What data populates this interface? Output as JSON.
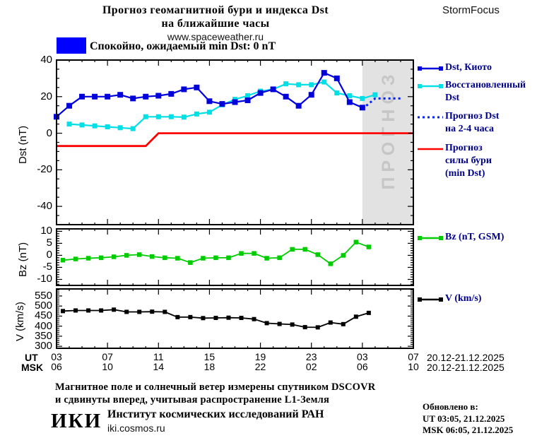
{
  "header": {
    "title_line1": "Прогноз геомагнитной бури и индекса Dst",
    "title_line2": "на ближайшие часы",
    "website": "www.spaceweather.ru",
    "brand": "StormFocus"
  },
  "status_banner": {
    "level_color": "#0000ff",
    "text": "Спокойно, ожидаемый min Dst: 0 nT"
  },
  "forecast_region_label": "ПРОГНОЗ",
  "legend": {
    "dst_kyoto": "Dst, Киото",
    "dst_restored_line1": "Восстановленный",
    "dst_restored_line2": "Dst",
    "dst_forecast_line1": "Прогноз Dst",
    "dst_forecast_line2": "на 2-4 часа",
    "storm_forecast_line1": "Прогноз",
    "storm_forecast_line2": "силы бури",
    "storm_forecast_line3": "(min Dst)",
    "bz": "Bz (nT, GSM)",
    "v": "V (km/s)"
  },
  "axes": {
    "dst_ylabel": "Dst (nT)",
    "bz_ylabel": "Bz (nT)",
    "v_ylabel": "V (km/s)",
    "ut_row_label": "UT",
    "msk_row_label": "MSK",
    "ut_tick_labels": [
      "03",
      "07",
      "11",
      "15",
      "19",
      "23",
      "03",
      "07"
    ],
    "msk_tick_labels": [
      "06",
      "10",
      "14",
      "18",
      "22",
      "02",
      "06",
      "10"
    ],
    "ut_date_range": "20.12-21.12.2025",
    "msk_date_range": "20.12-21.12.2025",
    "dst_ytick_labels": [
      40,
      20,
      0,
      -20,
      -40
    ],
    "bz_ytick_labels": [
      10,
      5,
      0,
      -5,
      -10
    ],
    "v_ytick_labels": [
      550,
      500,
      450,
      400,
      350,
      300
    ]
  },
  "footer": {
    "note_line1": "Магнитное поле и солнечный ветер измерены спутником DSCOVR",
    "note_line2": "и сдвинуты вперед, учитывая распространение L1-Земля",
    "updated_label": "Обновлено в:",
    "updated_ut": "UT  03:05, 21.12.2025",
    "updated_msk": "MSK 06:05, 21.12.2025",
    "logo_text": "ИКИ",
    "institute": "Институт космических исследований РАН",
    "institute_site": "iki.cosmos.ru"
  },
  "colors": {
    "dst_kyoto": "#0000dd",
    "dst_restored": "#00e0e6",
    "dst_forecast": "#0020ff",
    "storm_forecast": "#ff0000",
    "bz": "#00cc00",
    "v": "#000000",
    "legend_text": "#00008c",
    "forecast_region_bg": "#e2e2e2",
    "forecast_region_text": "#c6c6c6",
    "axis": "#000000"
  },
  "chart_data": [
    {
      "type": "line",
      "panel": "dst",
      "ylabel": "Dst (nT)",
      "ylim": [
        -50,
        40
      ],
      "y_major_step": 20,
      "y_minor_step": 5,
      "x_hours_total": 28,
      "x_start": "03:00 UT 20.12.2025",
      "x_major_step_hours": 4,
      "forecast_region_hours": [
        24,
        28
      ],
      "series": [
        {
          "name": "Прогноз силы бури (min Dst)",
          "color_key": "storm_forecast",
          "style": "solid",
          "width": 2.8,
          "marker": 0,
          "points": [
            [
              0,
              -7
            ],
            [
              7,
              -7
            ],
            [
              8,
              0
            ],
            [
              28,
              0
            ]
          ]
        },
        {
          "name": "Восстановленный Dst",
          "color_key": "dst_restored",
          "style": "solid",
          "width": 2.2,
          "marker": 7,
          "start_hour": 1,
          "values": [
            5,
            4.5,
            4,
            3.5,
            3,
            2.5,
            9,
            9,
            9,
            8.8,
            10.5,
            11.5,
            15.5,
            18.5,
            20.5,
            23,
            24,
            27,
            26.5,
            26.5,
            28,
            22,
            20.5,
            19,
            21
          ]
        },
        {
          "name": "Dst, Киото",
          "color_key": "dst_kyoto",
          "style": "solid",
          "width": 2.2,
          "marker": 8,
          "start_hour": 0,
          "values": [
            9,
            15,
            20,
            20,
            20,
            21,
            19,
            20,
            20.5,
            21.5,
            24,
            25,
            17.5,
            16,
            17,
            18,
            22,
            24,
            20,
            15,
            21,
            33,
            30,
            17,
            14
          ]
        },
        {
          "name": "Прогноз Dst на 2-4 часа",
          "color_key": "dst_forecast",
          "style": "dotted",
          "width": 3,
          "marker": 0,
          "points": [
            [
              24.3,
              15
            ],
            [
              25,
              19
            ],
            [
              27.2,
              19
            ]
          ]
        }
      ]
    },
    {
      "type": "line",
      "panel": "bz",
      "ylabel": "Bz (nT)",
      "ylim": [
        -12.5,
        11
      ],
      "y_major_step": 5,
      "y_minor_step": 1,
      "x_hours_total": 28,
      "series": [
        {
          "name": "Bz (nT, GSM)",
          "color_key": "bz",
          "style": "solid",
          "width": 1.8,
          "marker": 6.5,
          "start_hour": 0.5,
          "values": [
            -2,
            -1.5,
            -1.2,
            -1,
            -0.6,
            0,
            0.3,
            -0.5,
            -1,
            -1.2,
            -3,
            -1.2,
            -1,
            -1,
            0.8,
            0.8,
            -1.2,
            -1,
            2.5,
            2.5,
            0.3,
            -3.5,
            0,
            5.5,
            3.5
          ]
        }
      ]
    },
    {
      "type": "line",
      "panel": "v",
      "ylabel": "V (km/s)",
      "ylim": [
        290,
        585
      ],
      "y_major_step": 50,
      "y_minor_step": 10,
      "x_hours_total": 28,
      "series": [
        {
          "name": "V (km/s)",
          "color_key": "v",
          "style": "solid",
          "width": 1.8,
          "marker": 6,
          "start_hour": 0.5,
          "values": [
            475,
            478,
            478,
            478,
            482,
            471,
            471,
            472,
            471,
            445,
            445,
            440,
            441,
            442,
            441,
            435,
            415,
            411,
            408,
            395,
            394,
            418,
            410,
            447,
            466
          ]
        }
      ]
    }
  ]
}
